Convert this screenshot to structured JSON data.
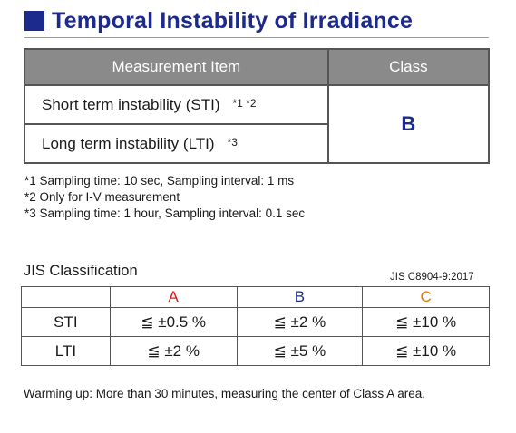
{
  "title": "Temporal Instability of Irradiance",
  "main_table": {
    "headers": [
      "Measurement Item",
      "Class"
    ],
    "rows": [
      {
        "item": "Short term instability (STI)",
        "note": "*1 *2"
      },
      {
        "item": "Long term instability (LTI)",
        "note": "*3"
      }
    ],
    "class_value": "B"
  },
  "notes": [
    "*1 Sampling time: 10 sec, Sampling interval: 1 ms",
    "*2 Only for I-V measurement",
    "*3 Sampling time: 1 hour, Sampling interval: 0.1 sec"
  ],
  "jis": {
    "title": "JIS Classification",
    "standard": "JIS C8904-9:2017",
    "headers": [
      "",
      "A",
      "B",
      "C"
    ],
    "rows": [
      {
        "label": "STI",
        "a": "≦ ±0.5 %",
        "b": "≦ ±2 %",
        "c": "≦ ±10 %"
      },
      {
        "label": "LTI",
        "a": "≦ ±2 %",
        "b": "≦ ±5 %",
        "c": "≦ ±10 %"
      }
    ]
  },
  "footer": "Warming up: More than 30 minutes, measuring the center of Class A area.",
  "colors": {
    "title": "#1b2a8c",
    "class_a": "#d61e1e",
    "class_b": "#1b2a8c",
    "class_c": "#e07a00"
  }
}
